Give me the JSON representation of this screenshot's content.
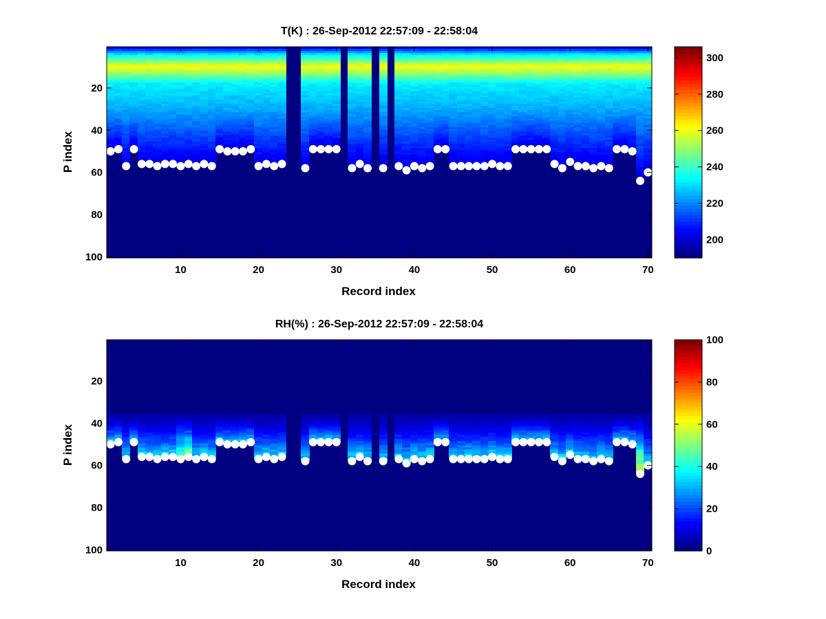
{
  "chart_data": [
    {
      "type": "heatmap",
      "title": "T(K) : 26-Sep-2012 22:57:09 - 22:58:04",
      "xlabel": "Record index",
      "ylabel": "P index",
      "xlim": [
        0.5,
        70.5
      ],
      "ylim": [
        0.5,
        100.5
      ],
      "y_reversed": true,
      "xticks": [
        10,
        20,
        30,
        40,
        50,
        60,
        70
      ],
      "yticks": [
        20,
        40,
        60,
        80,
        100
      ],
      "colorbar": {
        "range": [
          190,
          306
        ],
        "ticks": [
          200,
          220,
          240,
          260,
          280,
          300
        ],
        "colormap": "jet"
      },
      "field_description": "~205 K near P index 1-4, ~262 K peak near P index 10, decreasing to ~220-230 K by 25-45, down to ~200 K at the surface marker; below marker and for missing records values at colormap minimum",
      "missing_records": [
        24,
        25,
        31,
        35,
        37
      ],
      "surface_p_index": [
        50,
        49,
        57,
        49,
        56,
        56,
        57,
        56,
        56,
        57,
        56,
        57,
        56,
        57,
        49,
        50,
        50,
        50,
        49,
        57,
        56,
        57,
        56,
        0,
        0,
        58,
        49,
        49,
        49,
        49,
        0,
        58,
        56,
        58,
        0,
        58,
        0,
        57,
        59,
        57,
        58,
        57,
        49,
        49,
        57,
        57,
        57,
        57,
        57,
        56,
        57,
        57,
        49,
        49,
        49,
        49,
        49,
        56,
        58,
        55,
        57,
        57,
        58,
        57,
        58,
        49,
        49,
        50,
        64,
        60
      ]
    },
    {
      "type": "heatmap",
      "title": "RH(%) : 26-Sep-2012 22:57:09 - 22:58:04",
      "xlabel": "Record index",
      "ylabel": "P index",
      "xlim": [
        0.5,
        70.5
      ],
      "ylim": [
        0.5,
        100.5
      ],
      "y_reversed": true,
      "xticks": [
        10,
        20,
        30,
        40,
        50,
        60,
        70
      ],
      "yticks": [
        20,
        40,
        60,
        80,
        100
      ],
      "colorbar": {
        "range": [
          0,
          100
        ],
        "ticks": [
          0,
          20,
          40,
          60,
          80,
          100
        ],
        "colormap": "jet"
      },
      "field_description": "near 0% above P index ~36, increasing to ~20-40% just above the surface marker, up to ~55-65% in places (records 10-11 and 69); 0 below marker and for missing records",
      "missing_records": [
        24,
        25,
        31,
        35,
        37
      ],
      "surface_p_index": [
        50,
        49,
        57,
        49,
        56,
        56,
        57,
        56,
        56,
        57,
        56,
        57,
        56,
        57,
        49,
        50,
        50,
        50,
        49,
        57,
        56,
        57,
        56,
        0,
        0,
        58,
        49,
        49,
        49,
        49,
        0,
        58,
        56,
        58,
        0,
        58,
        0,
        57,
        59,
        57,
        58,
        57,
        49,
        49,
        57,
        57,
        57,
        57,
        57,
        56,
        57,
        57,
        49,
        49,
        49,
        49,
        49,
        56,
        58,
        55,
        57,
        57,
        58,
        57,
        58,
        49,
        49,
        50,
        64,
        60
      ]
    }
  ]
}
